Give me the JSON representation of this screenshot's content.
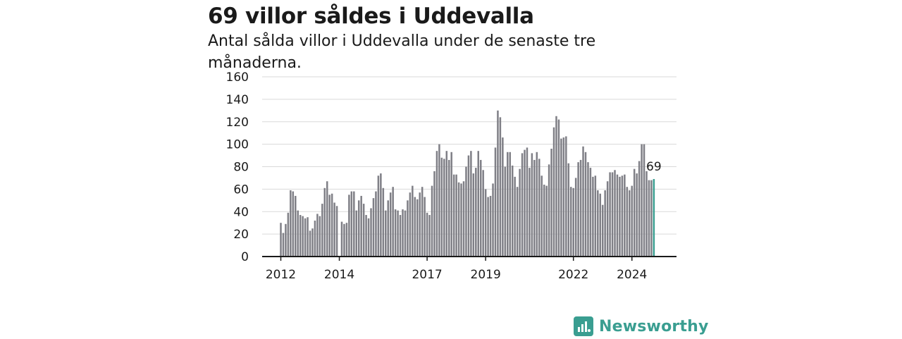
{
  "header": {
    "title": "69 villor såldes i Uddevalla",
    "subtitle": "Antal sålda villor i Uddevalla under de senaste tre månaderna."
  },
  "brand": {
    "name": "Newsworthy",
    "logo_icon": "newsworthy-logo-icon",
    "color": "#3a9e91"
  },
  "chart_data": {
    "type": "bar",
    "title": "69 villor såldes i Uddevalla",
    "subtitle": "Antal sålda villor i Uddevalla under de senaste tre månaderna.",
    "xlabel": "",
    "ylabel": "",
    "ylim": [
      0,
      160
    ],
    "yticks": [
      "0",
      "20",
      "40",
      "60",
      "80",
      "100",
      "120",
      "140",
      "160"
    ],
    "xticks": [
      {
        "label": "2012",
        "x": "2012-01"
      },
      {
        "label": "2014",
        "x": "2014-01"
      },
      {
        "label": "2017",
        "x": "2017-01"
      },
      {
        "label": "2019",
        "x": "2019-01"
      },
      {
        "label": "2022",
        "x": "2022-01"
      },
      {
        "label": "2024",
        "x": "2024-01"
      }
    ],
    "grid": true,
    "bar_color": "#7f7f86",
    "highlight_color": "#3a9e91",
    "start_month": "2012-01",
    "end_month": "2024-12",
    "values": [
      30,
      21,
      29,
      39,
      59,
      58,
      54,
      41,
      37,
      36,
      34,
      35,
      23,
      25,
      32,
      38,
      36,
      47,
      61,
      67,
      55,
      56,
      48,
      45,
      0,
      31,
      29,
      30,
      55,
      58,
      58,
      41,
      50,
      54,
      47,
      37,
      34,
      43,
      52,
      58,
      72,
      74,
      61,
      41,
      50,
      57,
      62,
      42,
      41,
      37,
      42,
      41,
      50,
      57,
      63,
      53,
      51,
      57,
      62,
      53,
      39,
      37,
      63,
      76,
      94,
      100,
      88,
      87,
      94,
      86,
      93,
      73,
      73,
      66,
      65,
      67,
      80,
      90,
      94,
      74,
      79,
      94,
      86,
      77,
      60,
      53,
      54,
      65,
      97,
      130,
      124,
      106,
      80,
      93,
      93,
      81,
      71,
      62,
      78,
      92,
      95,
      97,
      79,
      92,
      86,
      93,
      87,
      72,
      64,
      63,
      82,
      96,
      115,
      125,
      122,
      105,
      106,
      107,
      83,
      62,
      61,
      70,
      84,
      86,
      98,
      93,
      84,
      79,
      71,
      72,
      59,
      56,
      46,
      59,
      67,
      75,
      75,
      77,
      73,
      71,
      72,
      73,
      62,
      59,
      63,
      78,
      74,
      85,
      100,
      100,
      76,
      68,
      68,
      69
    ],
    "highlight_last": true,
    "annotation": {
      "text": "69"
    }
  }
}
